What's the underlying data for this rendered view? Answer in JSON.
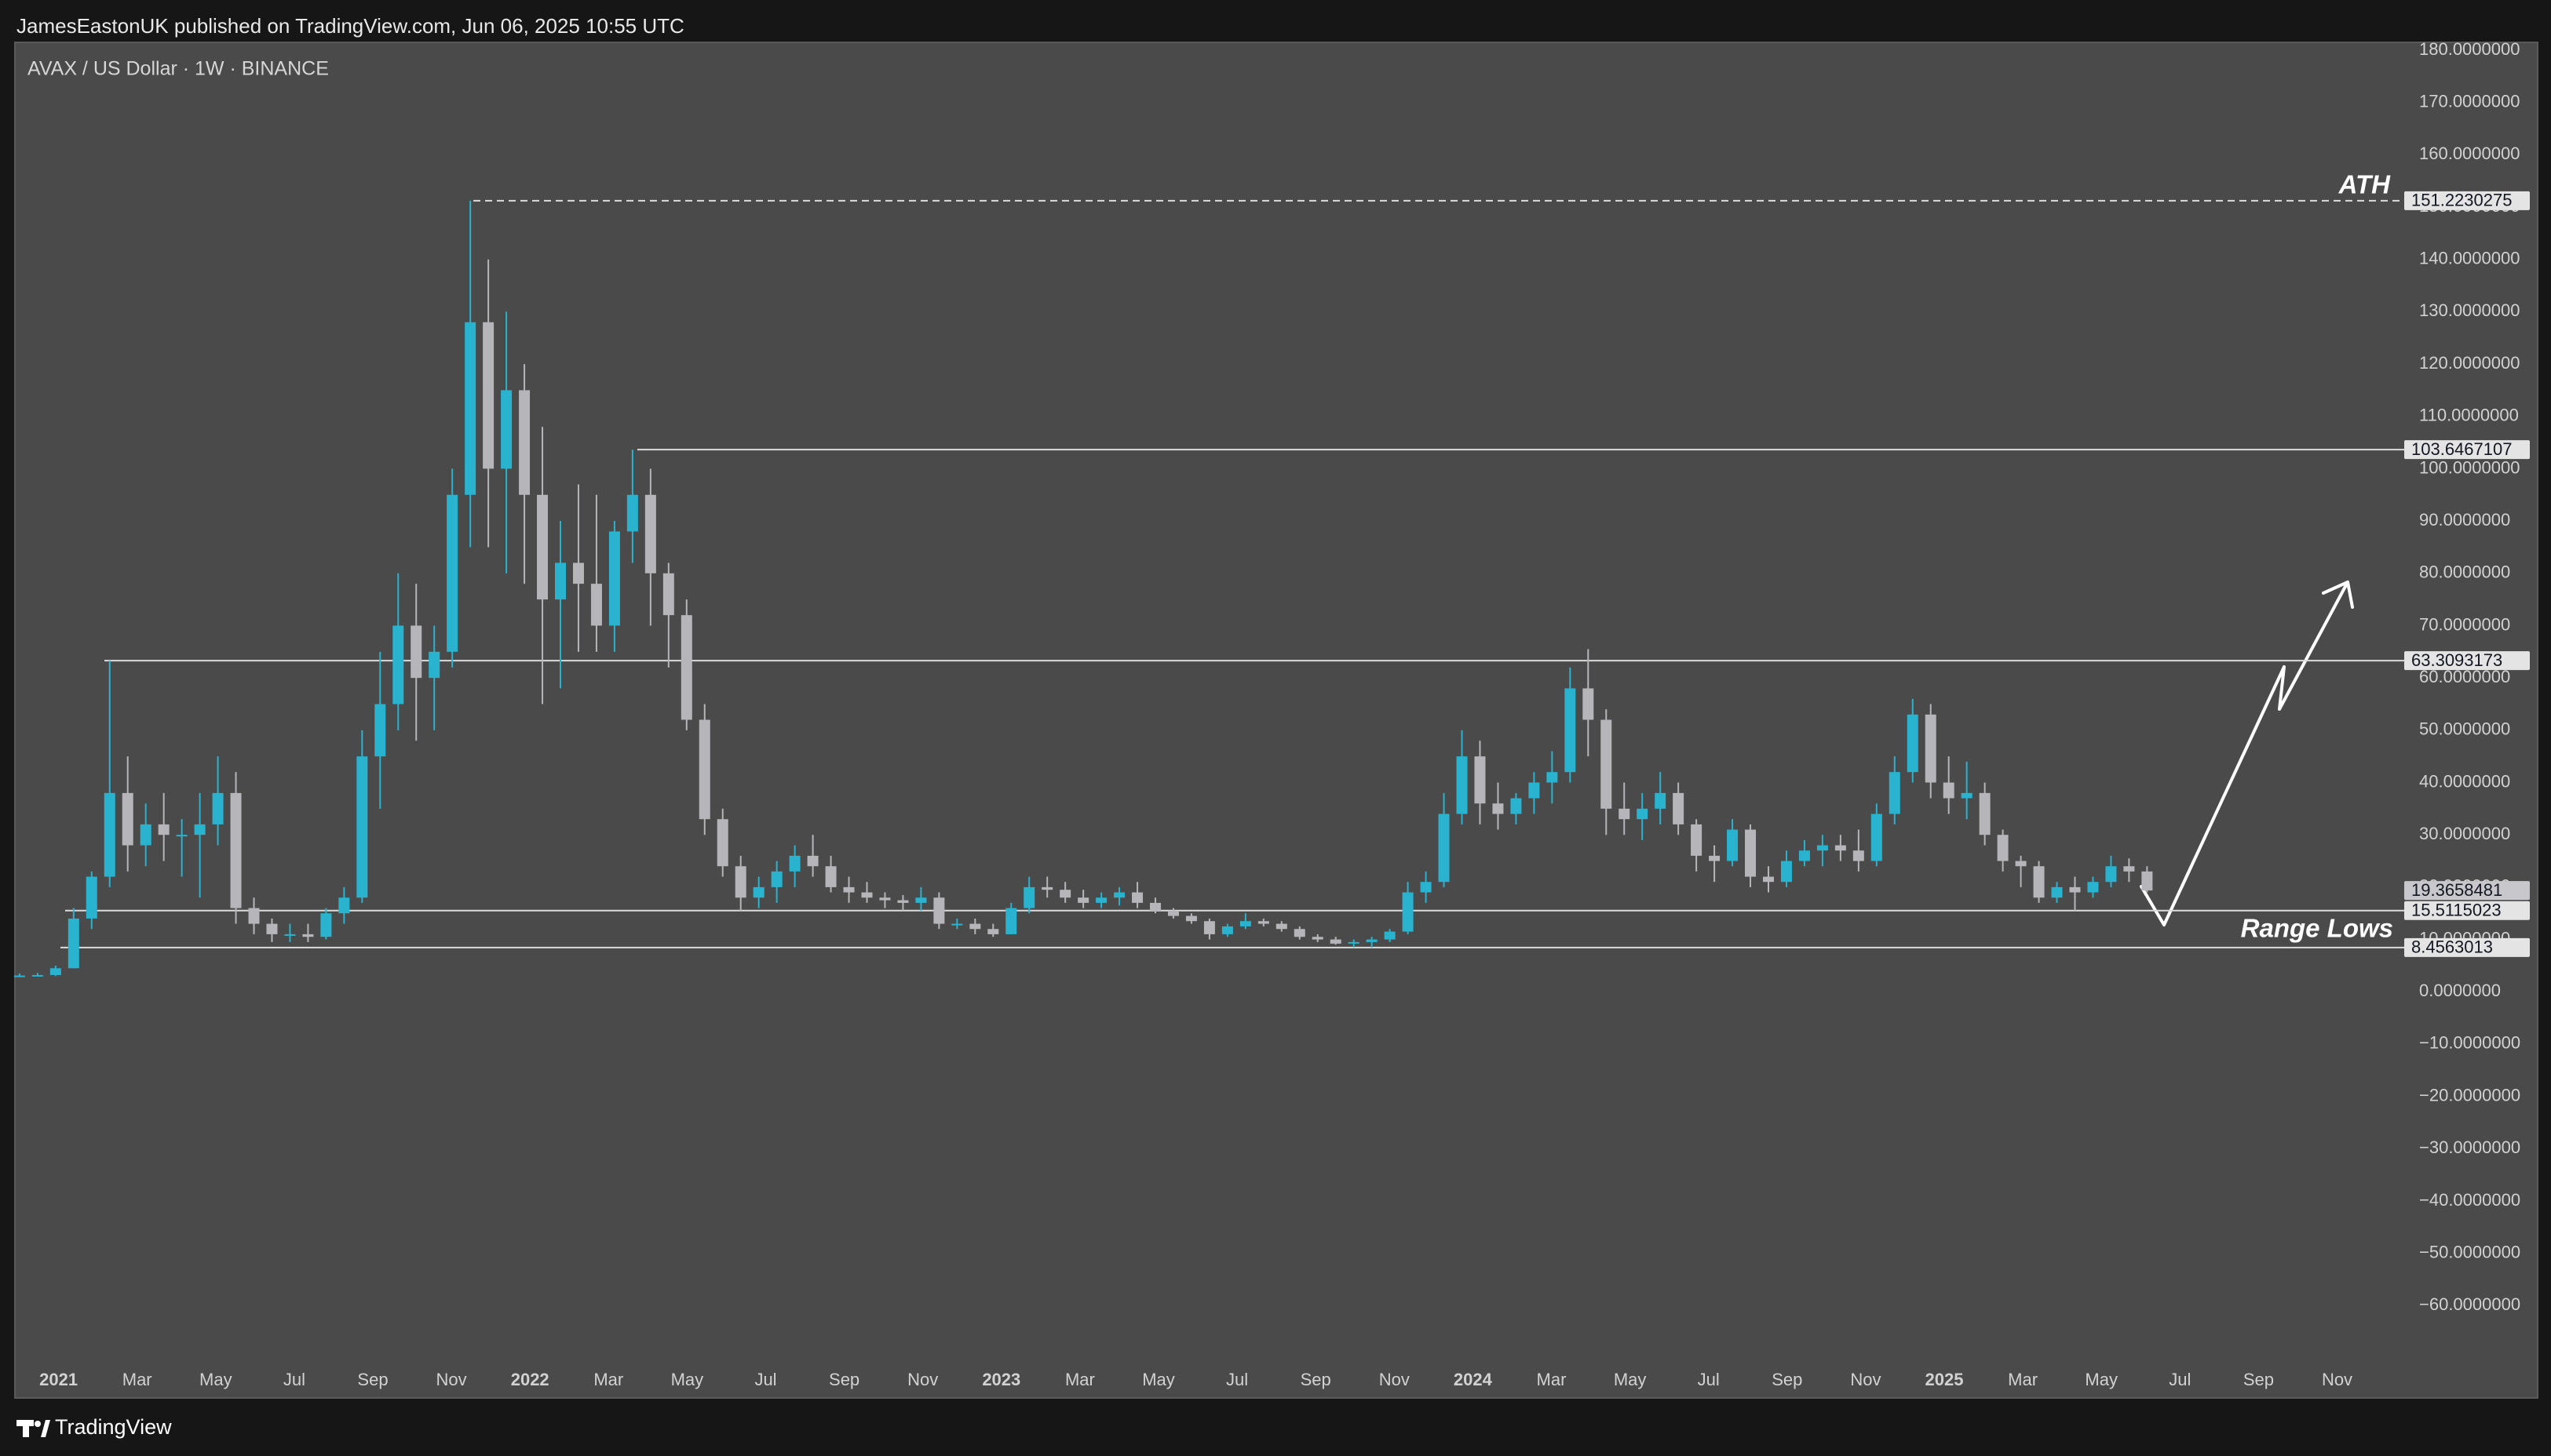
{
  "header": "JamesEastonUK published on TradingView.com, Jun 06, 2025 10:55 UTC",
  "footer": "TradingView",
  "chart_data": {
    "type": "candlestick",
    "title": "AVAX / US Dollar · 1W · BINANCE",
    "up_color": "#2ab3cf",
    "down_color": "#b5b5ba",
    "open": [
      3,
      3.1,
      3.2,
      4.5,
      14,
      22,
      38,
      28,
      32,
      30,
      30,
      32,
      38,
      16,
      13,
      11,
      11,
      10.5,
      15,
      18,
      45,
      55,
      70,
      60,
      65,
      95,
      128,
      100,
      115,
      95,
      75,
      82,
      78,
      70,
      88,
      95,
      80,
      72,
      52,
      33,
      24,
      18,
      20,
      23,
      26,
      24,
      20,
      19,
      18,
      17.5,
      17,
      18,
      13,
      13,
      12,
      11,
      16,
      20,
      19.5,
      18,
      17,
      18,
      19,
      17,
      15.5,
      14.5,
      13.5,
      11,
      12.5,
      13.5,
      13,
      12,
      10.5,
      10,
      9.2,
      9.5,
      10,
      11.5,
      19,
      21,
      34,
      45,
      36,
      34,
      37,
      40,
      42,
      58,
      52,
      35,
      33,
      35,
      38,
      32,
      26,
      25,
      31,
      22,
      21,
      25,
      27,
      28,
      27,
      25,
      34,
      42,
      53,
      40,
      37,
      38,
      30,
      25,
      24,
      18,
      20,
      19,
      21,
      24,
      23
    ],
    "high": [
      3.5,
      3.6,
      5,
      16,
      23,
      63.3093173,
      45,
      36,
      38,
      33,
      38,
      45,
      42,
      18,
      14,
      13,
      13,
      16,
      20,
      50,
      65,
      80,
      78,
      70,
      100,
      151.2230275,
      140,
      130,
      120,
      108,
      90,
      97,
      95,
      90,
      103.6467107,
      100,
      82,
      75,
      55,
      35,
      26,
      22,
      25,
      28,
      30,
      26,
      22,
      21,
      19,
      18.5,
      20,
      19,
      14,
      14,
      13,
      17,
      22,
      22,
      21,
      19.5,
      19,
      20,
      21,
      18,
      16,
      15,
      14,
      13,
      15,
      14,
      13.5,
      12.5,
      11,
      10.5,
      10,
      10.5,
      12,
      21,
      23,
      38,
      50,
      48,
      40,
      38,
      42,
      46,
      62,
      65.5,
      54,
      40,
      38,
      42,
      40,
      33,
      28,
      33,
      32,
      24,
      27,
      29,
      30,
      30,
      31,
      36,
      45,
      56,
      55,
      45,
      44,
      40,
      31,
      26,
      25,
      21,
      22,
      22,
      26,
      25.5,
      24
    ],
    "low": [
      2.8,
      2.9,
      3,
      4.5,
      12,
      20,
      23,
      24,
      25,
      22,
      18,
      28,
      13,
      11,
      9.5,
      9.5,
      9.5,
      10,
      13,
      17,
      35,
      50,
      48,
      50,
      62,
      85,
      85,
      80,
      78,
      55,
      58,
      65,
      65,
      65,
      82,
      70,
      62,
      50,
      30,
      22,
      15.5,
      16,
      17,
      20,
      22,
      19,
      17,
      17,
      16,
      15.5,
      15.5,
      12,
      12,
      11,
      10.5,
      11,
      15,
      18,
      17,
      16,
      16,
      16.5,
      16,
      15,
      14,
      13,
      10,
      10.5,
      12,
      12.5,
      11.5,
      10,
      9.5,
      9,
      8.5,
      8.4563013,
      9.5,
      11,
      17,
      20,
      32,
      32,
      31,
      32,
      34,
      36,
      40,
      45,
      30,
      30,
      29,
      32,
      30,
      23,
      21,
      24,
      20,
      19,
      20,
      24,
      24,
      25,
      23,
      24,
      32,
      40,
      37,
      34,
      33,
      28,
      23,
      20,
      17,
      17,
      15.5,
      18,
      20,
      21,
      19
    ],
    "close": [
      3.1,
      3.2,
      4.5,
      14,
      22,
      38,
      28,
      32,
      30,
      30,
      32,
      38,
      16,
      13,
      11,
      11,
      10.5,
      15,
      18,
      45,
      55,
      70,
      60,
      65,
      95,
      128,
      100,
      115,
      95,
      75,
      82,
      78,
      70,
      88,
      95,
      80,
      72,
      52,
      33,
      24,
      18,
      20,
      23,
      26,
      24,
      20,
      19,
      18,
      17.5,
      17,
      18,
      13,
      13,
      12,
      11,
      16,
      20,
      19.5,
      18,
      17,
      18,
      19,
      17,
      15.5,
      14.5,
      13.5,
      11,
      12.5,
      13.5,
      13,
      12,
      10.5,
      10,
      9.2,
      9.5,
      10,
      11.5,
      19,
      21,
      34,
      45,
      36,
      34,
      37,
      40,
      42,
      58,
      52,
      35,
      33,
      35,
      38,
      32,
      26,
      25,
      31,
      22,
      21,
      25,
      27,
      28,
      27,
      25,
      34,
      42,
      53,
      40,
      37,
      38,
      30,
      25,
      24,
      18,
      20,
      19,
      21,
      24,
      23,
      19.3658481
    ],
    "x_labels": [
      "2021",
      "Mar",
      "May",
      "Jul",
      "Sep",
      "Nov",
      "2022",
      "Mar",
      "May",
      "Jul",
      "Sep",
      "Nov",
      "2023",
      "Mar",
      "May",
      "Jul",
      "Sep",
      "Nov",
      "2024",
      "Mar",
      "May",
      "Jul",
      "Sep",
      "Nov",
      "2025",
      "Mar",
      "May",
      "Jul",
      "Sep",
      "Nov"
    ],
    "ylim": [
      -70,
      181.5
    ],
    "yticks": [
      {
        "value": 180,
        "label": "180.0000000"
      },
      {
        "value": 170,
        "label": "170.0000000"
      },
      {
        "value": 160,
        "label": "160.0000000"
      },
      {
        "value": 150,
        "label": "150.0000000"
      },
      {
        "value": 140,
        "label": "140.0000000"
      },
      {
        "value": 130,
        "label": "130.0000000"
      },
      {
        "value": 120,
        "label": "120.0000000"
      },
      {
        "value": 110,
        "label": "110.0000000"
      },
      {
        "value": 100,
        "label": "100.0000000"
      },
      {
        "value": 90,
        "label": "90.0000000"
      },
      {
        "value": 80,
        "label": "80.0000000"
      },
      {
        "value": 70,
        "label": "70.0000000"
      },
      {
        "value": 60,
        "label": "60.0000000"
      },
      {
        "value": 50,
        "label": "50.0000000"
      },
      {
        "value": 40,
        "label": "40.0000000"
      },
      {
        "value": 30,
        "label": "30.0000000"
      },
      {
        "value": 20,
        "label": "20.0000000"
      },
      {
        "value": 10,
        "label": "10.0000000"
      },
      {
        "value": 0,
        "label": "0.0000000"
      },
      {
        "value": -10,
        "label": "−10.0000000"
      },
      {
        "value": -20,
        "label": "−20.0000000"
      },
      {
        "value": -30,
        "label": "−30.0000000"
      },
      {
        "value": -40,
        "label": "−40.0000000"
      },
      {
        "value": -50,
        "label": "−50.0000000"
      },
      {
        "value": -60,
        "label": "−60.0000000"
      }
    ],
    "levels": [
      {
        "value": 151.2230275,
        "note": "ATH",
        "style": "dashed"
      },
      {
        "value": 103.6467107,
        "style": "solid"
      },
      {
        "value": 63.3093173,
        "style": "solid"
      },
      {
        "value": 15.5115023,
        "style": "solid"
      },
      {
        "value": 8.4563013,
        "note": "Range Lows",
        "style": "solid"
      }
    ]
  }
}
